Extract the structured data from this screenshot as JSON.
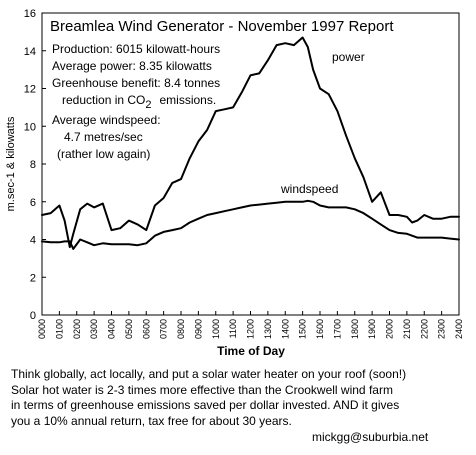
{
  "chart_data": {
    "type": "line",
    "title": "Breamlea Wind Generator - November 1997 Report",
    "xlabel": "Time of Day",
    "ylabel": "m.sec-1 & kilowatts",
    "ylim": [
      0,
      16
    ],
    "yticks": [
      0,
      2,
      4,
      6,
      8,
      10,
      12,
      14,
      16
    ],
    "grid": false,
    "x_ticks": [
      "0000",
      "0100",
      "0200",
      "0300",
      "0400",
      "0500",
      "0600",
      "0700",
      "0800",
      "0900",
      "1000",
      "1100",
      "1200",
      "1300",
      "1400",
      "1500",
      "1600",
      "1700",
      "1800",
      "1900",
      "2000",
      "2100",
      "2200",
      "2300",
      "2400"
    ],
    "x": [
      0,
      0.5,
      1,
      1.3,
      1.6,
      1.8,
      2.2,
      2.6,
      3,
      3.5,
      4,
      4.5,
      5,
      5.5,
      6,
      6.5,
      7,
      7.5,
      8,
      8.5,
      9,
      9.5,
      10,
      10.5,
      11,
      11.5,
      12,
      12.5,
      13,
      13.5,
      14,
      14.5,
      15,
      15.3,
      15.6,
      16,
      16.5,
      17,
      17.5,
      18,
      18.5,
      19,
      19.5,
      20,
      20.5,
      21,
      21.3,
      21.6,
      22,
      22.5,
      23,
      23.5,
      24
    ],
    "series": [
      {
        "name": "power",
        "values": [
          5.3,
          5.4,
          5.8,
          5.0,
          3.6,
          4.3,
          5.6,
          5.9,
          5.7,
          5.9,
          4.5,
          4.6,
          5.0,
          4.8,
          4.5,
          5.8,
          6.2,
          7.0,
          7.2,
          8.3,
          9.2,
          9.8,
          10.8,
          10.9,
          11.0,
          11.8,
          12.7,
          12.8,
          13.5,
          14.3,
          14.4,
          14.3,
          14.7,
          14.2,
          13.0,
          12.0,
          11.7,
          10.8,
          9.5,
          8.3,
          7.3,
          6.0,
          6.5,
          5.3,
          5.3,
          5.2,
          4.9,
          5.0,
          5.3,
          5.1,
          5.1,
          5.2,
          5.2
        ]
      },
      {
        "name": "windspeed",
        "values": [
          3.9,
          3.85,
          3.85,
          3.9,
          3.9,
          3.5,
          4.0,
          3.85,
          3.7,
          3.8,
          3.75,
          3.75,
          3.75,
          3.7,
          3.8,
          4.2,
          4.4,
          4.5,
          4.6,
          4.9,
          5.1,
          5.3,
          5.4,
          5.5,
          5.6,
          5.7,
          5.8,
          5.85,
          5.9,
          5.95,
          6.0,
          6.0,
          6.0,
          6.05,
          6.0,
          5.8,
          5.7,
          5.7,
          5.7,
          5.6,
          5.4,
          5.1,
          4.8,
          4.5,
          4.35,
          4.3,
          4.2,
          4.1,
          4.1,
          4.1,
          4.1,
          4.05,
          4.0
        ]
      }
    ],
    "annotations": [
      "Production: 6015 kilowatt-hours",
      "Average power: 8.35 kilowatts",
      "Greenhouse benefit: 8.4 tonnes",
      "reduction in CO",
      "2",
      "emissions.",
      "Average windspeed:",
      "4.7 metres/sec",
      "(rather low again)"
    ]
  },
  "footer": {
    "lines": [
      "Think globally, act locally, and put a solar water heater on your roof (soon!)",
      "Solar hot water is 2-3 times more effective than the Crookwell wind farm",
      "in terms of greenhouse emissions saved per dollar invested. AND it gives",
      "you a 10% annual return, tax free for about 30 years."
    ],
    "email": "mickgg@suburbia.net"
  }
}
